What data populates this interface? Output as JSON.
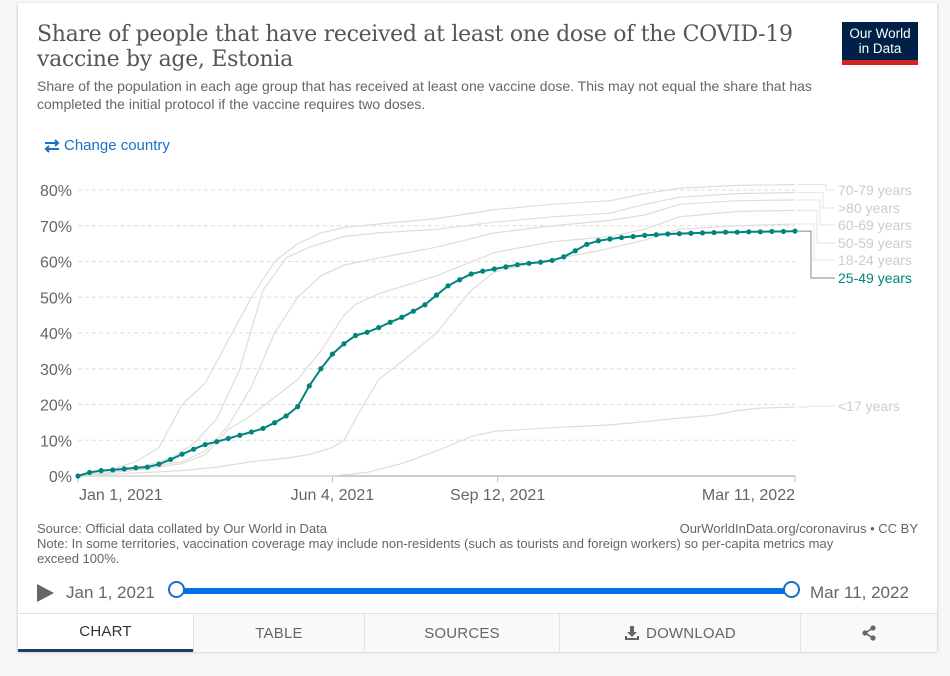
{
  "header": {
    "title": "Share of people that have received at least one dose of the COVID-19 vaccine by age, Estonia",
    "subtitle": "Share of the population in each age group that has received at least one vaccine dose. This may not equal the share that has completed the initial protocol if the vaccine requires two doses.",
    "logo_line1": "Our World",
    "logo_line2": "in Data",
    "change_country_label": "Change country",
    "change_country_icon": "swap-arrows-icon"
  },
  "colors": {
    "highlight": "#00847e",
    "background_series": "#dddddd",
    "link": "#1a6fc7",
    "logo_bg": "#002147",
    "logo_bar": "#ce261e",
    "timeline": "#0073e6"
  },
  "chart_data": {
    "type": "line",
    "title": "Share of people that have received at least one dose of the COVID-19 vaccine by age, Estonia",
    "xlabel": "",
    "ylabel": "",
    "x_ticks": [
      "Jan 1, 2021",
      "Jun 4, 2021",
      "Sep 12, 2021",
      "Mar 11, 2022"
    ],
    "x_tick_days": [
      0,
      154,
      254,
      434
    ],
    "y_ticks": [
      "0%",
      "10%",
      "20%",
      "30%",
      "40%",
      "50%",
      "60%",
      "70%",
      "80%"
    ],
    "ylim": [
      0,
      80
    ],
    "xlim_days": [
      0,
      434
    ],
    "grid": "horizontal-dashed",
    "legend": "right-inline",
    "highlighted_series": "25-49 years",
    "series": [
      {
        "name": "70-79 years",
        "highlighted": false,
        "points": [
          [
            0,
            0
          ],
          [
            21,
            2
          ],
          [
            35,
            4
          ],
          [
            49,
            8
          ],
          [
            63,
            20
          ],
          [
            77,
            26
          ],
          [
            91,
            38
          ],
          [
            105,
            50
          ],
          [
            119,
            60
          ],
          [
            133,
            65
          ],
          [
            147,
            68
          ],
          [
            161,
            69.5
          ],
          [
            182,
            70.5
          ],
          [
            217,
            72
          ],
          [
            252,
            74.5
          ],
          [
            287,
            76
          ],
          [
            322,
            77
          ],
          [
            343,
            79
          ],
          [
            364,
            80.5
          ],
          [
            399,
            81.3
          ],
          [
            434,
            81.5
          ]
        ]
      },
      {
        "name": ">80 years",
        "highlighted": false,
        "points": [
          [
            0,
            0
          ],
          [
            21,
            1
          ],
          [
            42,
            3
          ],
          [
            56,
            5
          ],
          [
            70,
            9
          ],
          [
            84,
            16
          ],
          [
            98,
            30
          ],
          [
            112,
            52
          ],
          [
            126,
            61
          ],
          [
            140,
            64
          ],
          [
            161,
            67
          ],
          [
            182,
            68
          ],
          [
            217,
            69
          ],
          [
            252,
            71
          ],
          [
            287,
            72.5
          ],
          [
            322,
            73.5
          ],
          [
            343,
            76
          ],
          [
            364,
            78
          ],
          [
            399,
            79
          ],
          [
            434,
            79.3
          ]
        ]
      },
      {
        "name": "60-69 years",
        "highlighted": false,
        "points": [
          [
            0,
            0
          ],
          [
            21,
            1
          ],
          [
            42,
            2.5
          ],
          [
            63,
            4
          ],
          [
            77,
            7
          ],
          [
            91,
            14
          ],
          [
            105,
            25
          ],
          [
            119,
            40
          ],
          [
            133,
            50
          ],
          [
            147,
            56
          ],
          [
            161,
            59
          ],
          [
            182,
            61
          ],
          [
            217,
            64
          ],
          [
            252,
            68
          ],
          [
            287,
            70
          ],
          [
            322,
            71.5
          ],
          [
            343,
            73
          ],
          [
            364,
            76
          ],
          [
            399,
            77
          ],
          [
            434,
            77.2
          ]
        ]
      },
      {
        "name": "50-59 years",
        "highlighted": false,
        "points": [
          [
            0,
            0
          ],
          [
            21,
            1
          ],
          [
            42,
            2
          ],
          [
            63,
            3.5
          ],
          [
            77,
            6
          ],
          [
            91,
            13
          ],
          [
            105,
            17
          ],
          [
            119,
            22
          ],
          [
            133,
            27
          ],
          [
            147,
            35
          ],
          [
            161,
            45
          ],
          [
            168,
            48
          ],
          [
            182,
            51
          ],
          [
            217,
            56
          ],
          [
            252,
            62.5
          ],
          [
            287,
            65.5
          ],
          [
            322,
            67
          ],
          [
            343,
            69
          ],
          [
            364,
            72.5
          ],
          [
            399,
            74
          ],
          [
            434,
            74.3
          ]
        ]
      },
      {
        "name": "18-24 years",
        "highlighted": false,
        "points": [
          [
            0,
            0
          ],
          [
            21,
            0.5
          ],
          [
            42,
            1
          ],
          [
            63,
            1.5
          ],
          [
            84,
            2.5
          ],
          [
            105,
            4
          ],
          [
            126,
            5
          ],
          [
            140,
            6
          ],
          [
            154,
            8
          ],
          [
            161,
            10
          ],
          [
            168,
            16
          ],
          [
            182,
            27
          ],
          [
            196,
            32
          ],
          [
            217,
            40
          ],
          [
            238,
            52
          ],
          [
            252,
            57
          ],
          [
            280,
            60
          ],
          [
            315,
            63
          ],
          [
            343,
            66
          ],
          [
            364,
            69
          ],
          [
            399,
            70
          ],
          [
            434,
            70.5
          ]
        ]
      },
      {
        "name": "25-49 years",
        "highlighted": true,
        "values": [
          0,
          1.0,
          1.5,
          1.7,
          2.0,
          2.3,
          2.5,
          3.3,
          4.6,
          6.1,
          7.5,
          8.8,
          9.6,
          10.5,
          11.4,
          12.3,
          13.3,
          14.9,
          16.8,
          19.4,
          25.2,
          30.0,
          34.1,
          37.0,
          39.3,
          40.2,
          41.5,
          43.0,
          44.4,
          46.1,
          47.9,
          50.6,
          53.2,
          54.9,
          56.5,
          57.3,
          57.9,
          58.5,
          59.1,
          59.5,
          59.8,
          60.3,
          61.3,
          63.0,
          64.8,
          65.8,
          66.3,
          66.7,
          67.0,
          67.3,
          67.5,
          67.7,
          67.8,
          67.9,
          68.0,
          68.1,
          68.2,
          68.2,
          68.3,
          68.3,
          68.4,
          68.4,
          68.5
        ],
        "value_interval_days": 7
      },
      {
        "name": "<17 years",
        "highlighted": false,
        "points": [
          [
            0,
            0
          ],
          [
            154,
            0
          ],
          [
            175,
            1
          ],
          [
            196,
            3.5
          ],
          [
            217,
            7
          ],
          [
            238,
            11
          ],
          [
            252,
            12.5
          ],
          [
            287,
            13.5
          ],
          [
            322,
            14.3
          ],
          [
            343,
            15.2
          ],
          [
            364,
            16.2
          ],
          [
            385,
            17
          ],
          [
            399,
            18.3
          ],
          [
            413,
            19
          ],
          [
            434,
            19.3
          ]
        ]
      }
    ]
  },
  "footer": {
    "source": "Source: Official data collated by Our World in Data",
    "note": "Note: In some territories, vaccination coverage may include non-residents (such as tourists and foreign workers) so per-capita metrics may exceed 100%.",
    "url": "OurWorldInData.org/coronavirus • CC BY"
  },
  "timeline": {
    "start_label": "Jan 1, 2021",
    "end_label": "Mar 11, 2022",
    "start_fraction": 0,
    "end_fraction": 1
  },
  "tabs": [
    {
      "label": "CHART",
      "active": true
    },
    {
      "label": "TABLE",
      "active": false
    },
    {
      "label": "SOURCES",
      "active": false
    },
    {
      "label": "DOWNLOAD",
      "active": false,
      "icon": "download-icon"
    },
    {
      "label": "",
      "active": false,
      "icon": "share-icon"
    }
  ]
}
